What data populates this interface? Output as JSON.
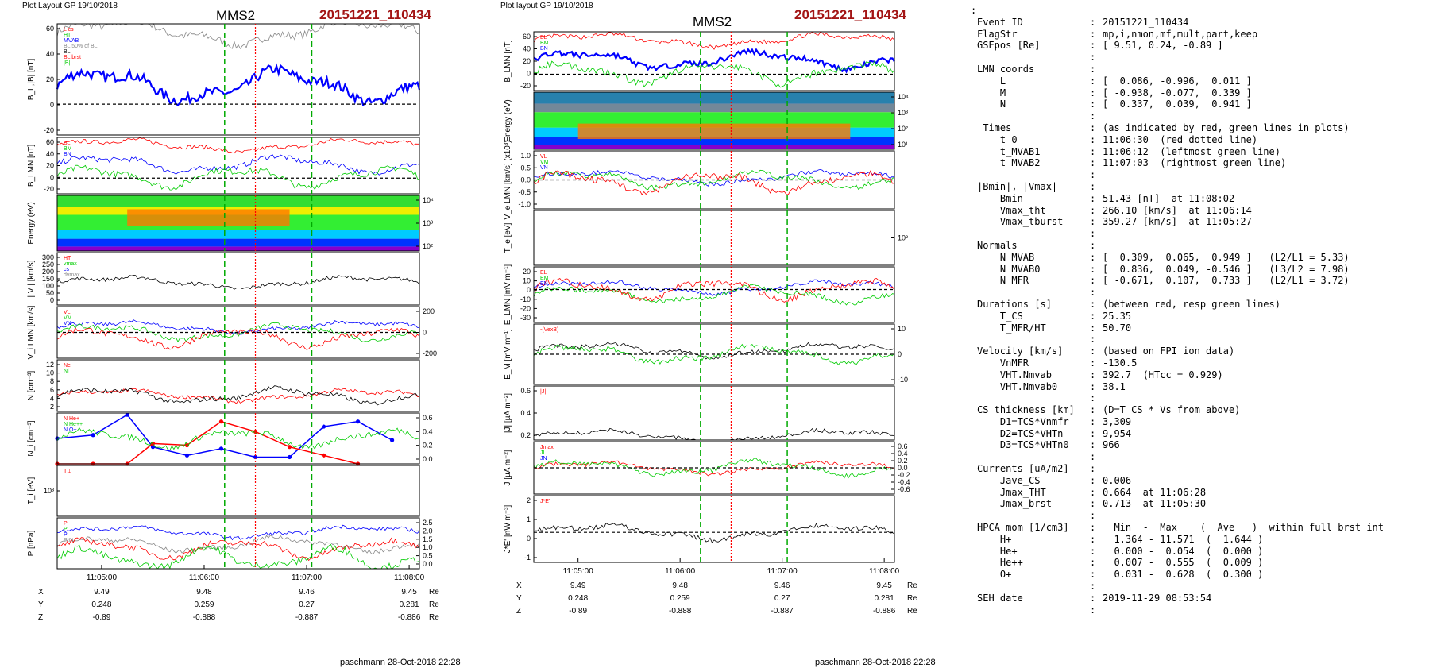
{
  "left_panel": {
    "header": "Plot Layout GP 19/10/2018",
    "title": "MMS2",
    "event": "20151221_110434",
    "footer": "paschmann 28-Oct-2018 22:28",
    "ephemeris": {
      "labels": [
        "X",
        "Y",
        "Z"
      ],
      "unit": "Re",
      "times": [
        "11:05:00",
        "11:06:00",
        "11:07:00",
        "11:08:00"
      ],
      "rows": [
        [
          "9.49",
          "9.48",
          "9.46",
          "9.45"
        ],
        [
          "0.248",
          "0.259",
          "0.27",
          "0.281"
        ],
        [
          "-0.89",
          "-0.888",
          "-0.887",
          "-0.886"
        ]
      ]
    },
    "panels": [
      {
        "ylabel": "B_L,|B| [nT]",
        "ticks": [
          "60",
          "40",
          "20",
          "0",
          "-20"
        ],
        "legend": [
          "L cs",
          "HT",
          "MVAB",
          "BL 50% of BL",
          "BL",
          "BL brst",
          "|B|"
        ]
      },
      {
        "ylabel": "B_LMN [nT]",
        "ticks": [
          "60",
          "40",
          "20",
          "0",
          "-20"
        ],
        "legend": [
          "BL",
          "BM",
          "BN"
        ]
      },
      {
        "ylabel": "Energy (eV)",
        "ticks": [
          "10⁴",
          "10³",
          "10²"
        ]
      },
      {
        "ylabel": "| V | [km/s]",
        "ticks": [
          "300",
          "250",
          "200",
          "150",
          "100",
          "50",
          "0"
        ],
        "legend": [
          "HT",
          "vmax",
          "cs",
          "dvmax"
        ]
      },
      {
        "ylabel": "V_i LMN [km/s]",
        "ticks": [
          "200",
          "0",
          "-200"
        ],
        "legend": [
          "VL",
          "VM",
          "VN"
        ]
      },
      {
        "ylabel": "N [cm⁻³]",
        "ticks": [
          "12",
          "10",
          "8",
          "6",
          "4",
          "2"
        ],
        "legend": [
          "Ne",
          "Ni"
        ]
      },
      {
        "ylabel": "N_i [cm⁻³]",
        "ticks": [
          "0.6",
          "0.4",
          "0.2",
          "0.0"
        ],
        "legend": [
          "N He+",
          "N He++",
          "N O+"
        ]
      },
      {
        "ylabel": "T_i [eV]",
        "ticks": [
          "10³"
        ],
        "legend": [
          "T⊥"
        ]
      },
      {
        "ylabel": "P [nPa]",
        "ticks": [
          "2.5",
          "2.0",
          "1.5",
          "1.0",
          "0.5",
          "0.0"
        ],
        "legend": [
          "P",
          "P",
          "P",
          "Ptot"
        ]
      }
    ]
  },
  "middle_panel": {
    "header": "Plot layout GP 19/10/2018",
    "title": "MMS2",
    "event": "20151221_110434",
    "footer": "paschmann 28-Oct-2018 22:28",
    "ephemeris": {
      "labels": [
        "X",
        "Y",
        "Z"
      ],
      "unit": "Re",
      "times": [
        "11:05:00",
        "11:06:00",
        "11:07:00",
        "11:08:00"
      ],
      "rows": [
        [
          "9.49",
          "9.48",
          "9.46",
          "9.45"
        ],
        [
          "0.248",
          "0.259",
          "0.27",
          "0.281"
        ],
        [
          "-0.89",
          "-0.888",
          "-0.887",
          "-0.886"
        ]
      ]
    },
    "panels": [
      {
        "ylabel": "B_LMN [nT]",
        "ticks": [
          "60",
          "40",
          "20",
          "0",
          "-20"
        ],
        "legend": [
          "BL",
          "BM",
          "BN"
        ]
      },
      {
        "ylabel": "Energy (eV)",
        "ticks": [
          "10⁴",
          "10³",
          "10²",
          "10¹"
        ]
      },
      {
        "ylabel": "V_e LMN [km/s] (x10³)",
        "ticks": [
          "1.0",
          "0.5",
          "0.0",
          "-0.5",
          "-1.0"
        ],
        "legend": [
          "VL",
          "VM",
          "VN"
        ]
      },
      {
        "ylabel": "T_e [eV]",
        "ticks": [
          "10²"
        ]
      },
      {
        "ylabel": "E_LMN [mV m⁻¹]",
        "ticks": [
          "20",
          "10",
          "0",
          "-10",
          "-20",
          "-30"
        ],
        "legend": [
          "EL",
          "EM",
          "EN"
        ]
      },
      {
        "ylabel": "E_M [mV m⁻¹]",
        "ticks": [
          "10",
          "0",
          "-10"
        ],
        "legend": [
          "-(VexB)"
        ]
      },
      {
        "ylabel": "|J| [µA m⁻²]",
        "ticks": [
          "0.6",
          "0.4",
          "0.2"
        ],
        "legend": [
          "|J|"
        ]
      },
      {
        "ylabel": "J [µA m⁻²]",
        "ticks": [
          "0.6",
          "0.4",
          "0.2",
          "0.0",
          "-0.2",
          "-0.4",
          "-0.6"
        ],
        "legend": [
          "Jmax",
          "JL",
          "JN"
        ]
      },
      {
        "ylabel": "J*E' [nW m⁻³]",
        "ticks": [
          "2",
          "1",
          "0",
          "-1"
        ],
        "legend": [
          "J*E'"
        ]
      }
    ]
  },
  "summary": {
    "top_mark": ":",
    "rows": [
      {
        "k": "Event ID",
        "v": "20151221_110434"
      },
      {
        "k": "FlagStr",
        "v": "mp,i,nmon,mf,mult,part,keep"
      },
      {
        "k": "GSEpos [Re]",
        "v": "[ 9.51, 0.24, -0.89 ]"
      },
      {
        "k": "",
        "v": ""
      },
      {
        "k": "LMN coords",
        "v": ""
      },
      {
        "k": "    L",
        "v": "[  0.086, -0.996,  0.011 ]"
      },
      {
        "k": "    M",
        "v": "[ -0.938, -0.077,  0.339 ]"
      },
      {
        "k": "    N",
        "v": "[  0.337,  0.039,  0.941 ]"
      },
      {
        "k": "",
        "v": ""
      },
      {
        "k": " Times",
        "v": "(as indicated by red, green lines in plots)"
      },
      {
        "k": "    t_0",
        "v": "11:06:30  (red dotted line)"
      },
      {
        "k": "    t_MVAB1",
        "v": "11:06:12  (leftmost green line)"
      },
      {
        "k": "    t_MVAB2",
        "v": "11:07:03  (rightmost green line)"
      },
      {
        "k": "",
        "v": ""
      },
      {
        "k": "|Bmin|, |Vmax|",
        "v": ""
      },
      {
        "k": "    Bmin",
        "v": "51.43 [nT]  at 11:08:02"
      },
      {
        "k": "    Vmax_tht",
        "v": "266.10 [km/s]  at 11:06:14"
      },
      {
        "k": "    Vmax_tburst",
        "v": "359.27 [km/s]  at 11:05:27"
      },
      {
        "k": "",
        "v": ""
      },
      {
        "k": "Normals",
        "v": ""
      },
      {
        "k": "    N MVAB",
        "v": "[  0.309,  0.065,  0.949 ]   (L2/L1 = 5.33)"
      },
      {
        "k": "    N MVAB0",
        "v": "[  0.836,  0.049, -0.546 ]   (L3/L2 = 7.98)"
      },
      {
        "k": "    N MFR",
        "v": "[ -0.671,  0.107,  0.733 ]   (L2/L1 = 3.72)"
      },
      {
        "k": "",
        "v": ""
      },
      {
        "k": "Durations [s]",
        "v": "(between red, resp green lines)"
      },
      {
        "k": "    T_CS",
        "v": "25.35"
      },
      {
        "k": "    T_MFR/HT",
        "v": "50.70"
      },
      {
        "k": "",
        "v": ""
      },
      {
        "k": "Velocity [km/s]",
        "v": "(based on FPI ion data)"
      },
      {
        "k": "    VnMFR",
        "v": "-130.5"
      },
      {
        "k": "    VHT.Nmvab",
        "v": "392.7  (HTcc = 0.929)"
      },
      {
        "k": "    VHT.Nmvab0",
        "v": "38.1"
      },
      {
        "k": "",
        "v": ""
      },
      {
        "k": "CS thickness [km]",
        "v": "(D=T_CS * Vs from above)"
      },
      {
        "k": "    D1=TCS*Vnmfr",
        "v": "3,309"
      },
      {
        "k": "    D2=TCS*VHTn",
        "v": "9,954"
      },
      {
        "k": "    D3=TCS*VHTn0",
        "v": "966"
      },
      {
        "k": "",
        "v": ""
      },
      {
        "k": "Currents [uA/m2]",
        "v": ""
      },
      {
        "k": "    Jave_CS",
        "v": "0.006"
      },
      {
        "k": "    Jmax_THT",
        "v": "0.664  at 11:06:28"
      },
      {
        "k": "    Jmax_brst",
        "v": "0.713  at 11:05:30"
      },
      {
        "k": "",
        "v": ""
      },
      {
        "k": "HPCA mom [1/cm3]",
        "v": "  Min  -  Max    (  Ave   )  within full brst int"
      },
      {
        "k": "    H+",
        "v": "  1.364 - 11.571  (  1.644 )"
      },
      {
        "k": "    He+",
        "v": "  0.000 -  0.054  (  0.000 )"
      },
      {
        "k": "    He++",
        "v": "  0.007 -  0.555  (  0.009 )"
      },
      {
        "k": "    O+",
        "v": "  0.031 -  0.628  (  0.300 )"
      },
      {
        "k": "",
        "v": ""
      },
      {
        "k": "SEH date",
        "v": "2019-11-29 08:53:54"
      },
      {
        "k": "",
        "v": ""
      }
    ]
  },
  "colors": {
    "red": "#ff0000",
    "green": "#00cc00",
    "blue": "#0000ff",
    "black": "#000000",
    "gray": "#888888",
    "event": "#a31515"
  },
  "chart_data": [
    {
      "type": "line",
      "title": "MMS2",
      "x_range": [
        "11:04:34",
        "11:08:06"
      ],
      "x_ticks": [
        "11:05:00",
        "11:06:00",
        "11:07:00",
        "11:08:00"
      ],
      "vertical_markers": {
        "green_dashed": [
          "11:06:12",
          "11:07:03"
        ],
        "red_dotted": "11:06:30"
      },
      "panels": [
        {
          "name": "B_L,|B|",
          "ylim": [
            -25,
            65
          ],
          "series": [
            {
              "name": "|B|",
              "color": "gray",
              "level": 58
            },
            {
              "name": "BL",
              "color": "blue",
              "level": 15
            }
          ]
        },
        {
          "name": "B_LMN",
          "ylim": [
            -25,
            65
          ],
          "series": [
            {
              "name": "BL",
              "color": "red",
              "level": 52
            },
            {
              "name": "BM",
              "color": "blue",
              "level": 22
            },
            {
              "name": "BN",
              "color": "green",
              "level": 2
            }
          ]
        },
        {
          "name": "ion spectrogram",
          "type": "heatmap"
        },
        {
          "name": "|V|",
          "ylim": [
            0,
            350
          ],
          "series": [
            {
              "name": "HT",
              "color": "black",
              "level": 150
            }
          ]
        },
        {
          "name": "V_i LMN",
          "ylim": [
            -250,
            250
          ],
          "series": [
            {
              "name": "VL",
              "color": "blue",
              "level": 50
            },
            {
              "name": "VM",
              "color": "green",
              "level": 0
            },
            {
              "name": "VN",
              "color": "red",
              "level": -50
            }
          ]
        },
        {
          "name": "N",
          "ylim": [
            0,
            13
          ],
          "series": [
            {
              "name": "Ne",
              "color": "red",
              "level": 4
            },
            {
              "name": "Ni",
              "color": "black",
              "level": 4
            }
          ]
        },
        {
          "name": "N_i",
          "ylim": [
            0,
            0.6
          ],
          "series": [
            {
              "name": "N O+",
              "color": "blue",
              "x": [
                "11:04:34",
                "11:04:55",
                "11:05:15",
                "11:05:30",
                "11:05:50",
                "11:06:10",
                "11:06:30",
                "11:06:50",
                "11:07:10",
                "11:07:30",
                "11:07:50"
              ],
              "values": [
                0.3,
                0.34,
                0.58,
                0.2,
                0.1,
                0.18,
                0.08,
                0.08,
                0.44,
                0.5,
                0.28
              ]
            },
            {
              "name": "N He++",
              "color": "red",
              "x": [
                "11:04:34",
                "11:04:55",
                "11:05:15",
                "11:05:30",
                "11:05:50",
                "11:06:10",
                "11:06:30",
                "11:06:50",
                "11:07:10",
                "11:07:30"
              ],
              "values": [
                0.0,
                0.0,
                0.0,
                0.24,
                0.22,
                0.5,
                0.38,
                0.2,
                0.1,
                0.0
              ]
            },
            {
              "name": "N He+",
              "color": "green",
              "values": [
                0.0,
                0.0,
                0.0,
                0.0,
                0.0,
                0.0,
                0.0,
                0.0,
                0.0,
                0.0
              ]
            }
          ]
        },
        {
          "name": "T_i",
          "series": [
            {
              "name": "T∥",
              "color": "black",
              "level": 1200
            },
            {
              "name": "T⊥",
              "color": "red",
              "level": 1000
            }
          ]
        },
        {
          "name": "P",
          "ylim": [
            0,
            2.5
          ],
          "series": [
            {
              "name": "P",
              "color": "blue",
              "level": 1.8
            },
            {
              "name": "P",
              "color": "gray",
              "level": 1.2
            },
            {
              "name": "P",
              "color": "red",
              "level": 1.0
            },
            {
              "name": "Ptot",
              "color": "green",
              "level": 0.5
            }
          ]
        }
      ]
    },
    {
      "type": "line",
      "title": "MMS2",
      "x_range": [
        "11:04:34",
        "11:08:06"
      ],
      "x_ticks": [
        "11:05:00",
        "11:06:00",
        "11:07:00",
        "11:08:00"
      ],
      "vertical_markers": {
        "green_dashed": [
          "11:06:12",
          "11:07:03"
        ],
        "red_dotted": "11:06:30"
      },
      "panels": [
        {
          "name": "B_LMN",
          "ylim": [
            -25,
            65
          ],
          "series": [
            {
              "name": "BL",
              "color": "red",
              "level": 52
            },
            {
              "name": "BM",
              "color": "blue",
              "level": 22
            },
            {
              "name": "BN",
              "color": "green",
              "level": 2
            }
          ]
        },
        {
          "name": "electron spectrogram",
          "type": "heatmap"
        },
        {
          "name": "V_e LMN",
          "ylim": [
            -1.2,
            1.2
          ],
          "series": [
            {
              "name": "VL",
              "color": "blue",
              "level": 0.1
            },
            {
              "name": "VM",
              "color": "green",
              "level": 0
            },
            {
              "name": "VN",
              "color": "red",
              "level": -0.1
            }
          ]
        },
        {
          "name": "T_e",
          "series": [
            {
              "name": "T_par",
              "color": "red",
              "level": 300
            },
            {
              "name": "T_perp",
              "color": "black",
              "level": 150
            }
          ]
        },
        {
          "name": "E_LMN",
          "ylim": [
            -32,
            22
          ],
          "series": [
            {
              "name": "EL",
              "color": "blue",
              "level": 2
            },
            {
              "name": "EM",
              "color": "green",
              "level": -5
            },
            {
              "name": "EN",
              "color": "red",
              "level": 0
            }
          ]
        },
        {
          "name": "E_M",
          "ylim": [
            -15,
            15
          ],
          "series": [
            {
              "name": "-(VexB)",
              "color": "black",
              "level": 2
            },
            {
              "name": "EM",
              "color": "green",
              "level": 0
            }
          ]
        },
        {
          "name": "|J|",
          "ylim": [
            0,
            0.7
          ],
          "series": [
            {
              "name": "|J|",
              "color": "black",
              "level": 0.05
            }
          ]
        },
        {
          "name": "J",
          "ylim": [
            -0.7,
            0.7
          ],
          "series": [
            {
              "name": "JL",
              "color": "red",
              "level": 0
            },
            {
              "name": "JN",
              "color": "green",
              "level": 0
            }
          ]
        },
        {
          "name": "J*E'",
          "ylim": [
            -1.8,
            2.2
          ],
          "series": [
            {
              "name": "J*E'",
              "color": "black",
              "level": 0
            }
          ]
        }
      ]
    }
  ]
}
